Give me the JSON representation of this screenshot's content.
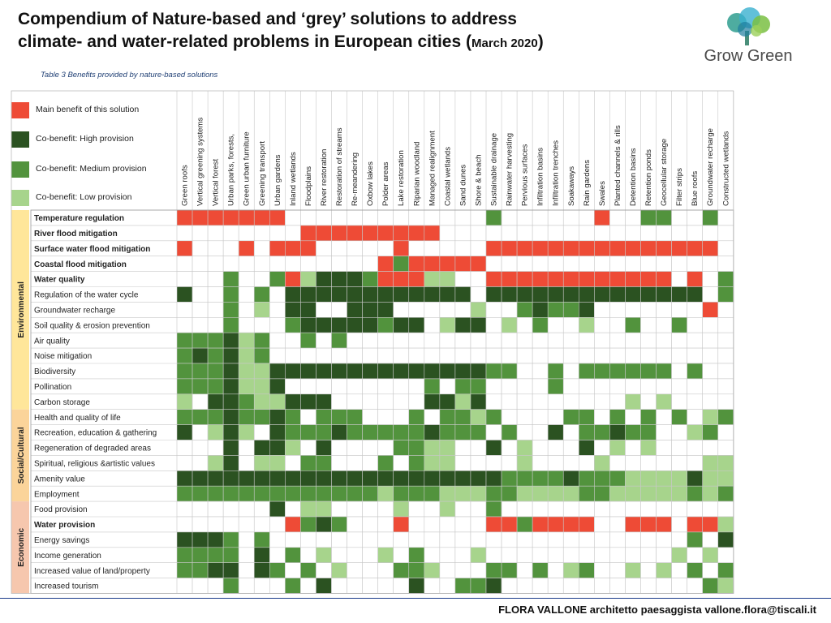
{
  "header": {
    "title_line1": "Compendium of Nature-based and ‘grey’ solutions to address",
    "title_line2": "climate- and water-related problems in European cities (",
    "title_date": "March 2020",
    "title_close": ")",
    "logo_text": "Grow Green",
    "table_caption": "Table 3 Benefits provided by nature-based solutions"
  },
  "footer": {
    "text": "FLORA VALLONE architetto paesaggista vallone.flora@tiscali.it"
  },
  "colors": {
    "main": "#ee4b36",
    "high": "#2b5221",
    "medium": "#52933d",
    "low": "#a7d48c",
    "empty": "#ffffff",
    "grid": "#c8c8c8",
    "env": "#ffe69a",
    "soc": "#fbd49a",
    "eco": "#f6c7ae"
  },
  "legend": [
    {
      "code": "M",
      "label": "Main benefit of this solution"
    },
    {
      "code": "H",
      "label": "Co-benefit: High provision"
    },
    {
      "code": "D",
      "label": "Co-benefit: Medium provision"
    },
    {
      "code": "L",
      "label": "Co-benefit: Low provision"
    }
  ],
  "chart_data": {
    "type": "heatmap",
    "title": "Table 3 Benefits provided by nature-based solutions",
    "value_legend": {
      "M": "Main benefit of this solution",
      "H": "Co-benefit: High provision",
      "D": "Co-benefit: Medium provision",
      "L": "Co-benefit: Low provision",
      ".": "none"
    },
    "columns": [
      "Green roofs",
      "Vertical greening systems",
      "Vertical forest",
      "Urban parks, forests,",
      "Green urban furniture",
      "Greening transport",
      "Urban gardens",
      "Inland wetlands",
      "Floodplains",
      "River restoration",
      "Restoration of streams",
      "Re-meandering",
      "Oxbow lakes",
      "Polder areas",
      "Lake restoration",
      "Riparian woodland",
      "Managed realignment",
      "Coastal wetlands",
      "Sand dunes",
      "Shore & beach",
      "Sustainable drainage",
      "Rainwater harvesting",
      "Pervious surfaces",
      "Infiltration basins",
      "Infiltration trenches",
      "Soakaways",
      "Rain gardens",
      "Swales",
      "Planted channels & rills",
      "Detention basins",
      "Retention ponds",
      "Geocellular storage",
      "Filter strips",
      "Blue roofs",
      "Groundwater recharge",
      "Constructed wetlands"
    ],
    "groups": [
      {
        "name": "Environmental",
        "rows": [
          0,
          13
        ]
      },
      {
        "name": "Social/Cultural",
        "rows": [
          13,
          19
        ]
      },
      {
        "name": "Economic",
        "rows": [
          19,
          25
        ]
      }
    ],
    "rows": [
      {
        "label": "Temperature regulation",
        "bold": true,
        "cells": "MMMMMMM.............D......M..DD..D.."
      },
      {
        "label": "River flood mitigation",
        "bold": true,
        "cells": "........MMMMMMMMM..................."
      },
      {
        "label": "Surface water flood mitigation",
        "bold": true,
        "cells": "M...M.MMM.....M.....MMMMMMMMMMMMMMM.."
      },
      {
        "label": "Coastal flood mitigation",
        "bold": true,
        "cells": ".............MDMMMMM................"
      },
      {
        "label": "Water quality",
        "bold": true,
        "cells": "...D..DMLHHHDMMMLL..MMMMMMMMMMMM.M.DM"
      },
      {
        "label": "Regulation of the water cycle",
        "bold": false,
        "cells": "H..D.D.HHHHHHHHHHHH.HHHHHHHHHHHHHH.DH"
      },
      {
        "label": "Groundwater recharge",
        "bold": false,
        "cells": "...D.L.HH..HHH.....L..DHDDH.......M."
      },
      {
        "label": "Soil quality & erosion prevention",
        "bold": false,
        "cells": "...D...DHHHHHDHH.LHH.L.D..L..D..D...."
      },
      {
        "label": "Air quality",
        "bold": false,
        "cells": "DDDHLD..D.D........................"
      },
      {
        "label": "Noise mitigation",
        "bold": false,
        "cells": "DHDHLD.............................."
      },
      {
        "label": "Biodiversity",
        "bold": false,
        "cells": "DDDHLLHHHHHHHHHHHHHHDD..D.DDDDDD.D..H"
      },
      {
        "label": "Pollination",
        "bold": false,
        "cells": "DDDHLLH.........D.DD....D..........."
      },
      {
        "label": "Carbon storage",
        "bold": false,
        "cells": "L.HHDLLHHH......HHLH.........L.L....H"
      },
      {
        "label": "Health and quality of life",
        "bold": false,
        "cells": "DDDHDDHD.DDD...D.DDLD....DD.D.D.D.LD"
      },
      {
        "label": "Recreation, education & gathering",
        "bold": false,
        "cells": "H.LHL.HDDDHDDDDDHDDD.D..H.DDHDD..LD"
      },
      {
        "label": "Regeneration of degraded areas",
        "bold": false,
        "cells": "...H.HHL.H....DDLL..H.L...H.L.L.....H"
      },
      {
        "label": "Spiritual, religious &artistic values",
        "bold": false,
        "cells": "..LH.LL.DD...D.DLL....L....L......LL"
      },
      {
        "label": "Amenity value",
        "bold": false,
        "cells": "HHHHHHHHHHHHHHHHHHHHHDDDDHDDDLLLLHLLD"
      },
      {
        "label": "Employment",
        "bold": false,
        "cells": "DDDDDDDDDDDDDLDDDLLLDDLLLLDDLLLLLDLDD"
      },
      {
        "label": "Food provision",
        "bold": false,
        "cells": "......H.LL....L..L..D..............."
      },
      {
        "label": "Water provision",
        "bold": true,
        "cells": ".......MDHD...M.....MMDMMMM..MMM.MML."
      },
      {
        "label": "Energy savings",
        "bold": false,
        "cells": "HHHD.D...........................D.H"
      },
      {
        "label": "Income generation",
        "bold": false,
        "cells": "DDDD.H.D.L...L.D...L............L.L"
      },
      {
        "label": "Increased value of land/property",
        "bold": false,
        "cells": "DDHH.HD.D.L...DDL...DD.D.LD..L.L.D.D"
      },
      {
        "label": "Increased tourism",
        "bold": false,
        "cells": "...D...D.H.....H..DDH.............DL"
      }
    ]
  }
}
